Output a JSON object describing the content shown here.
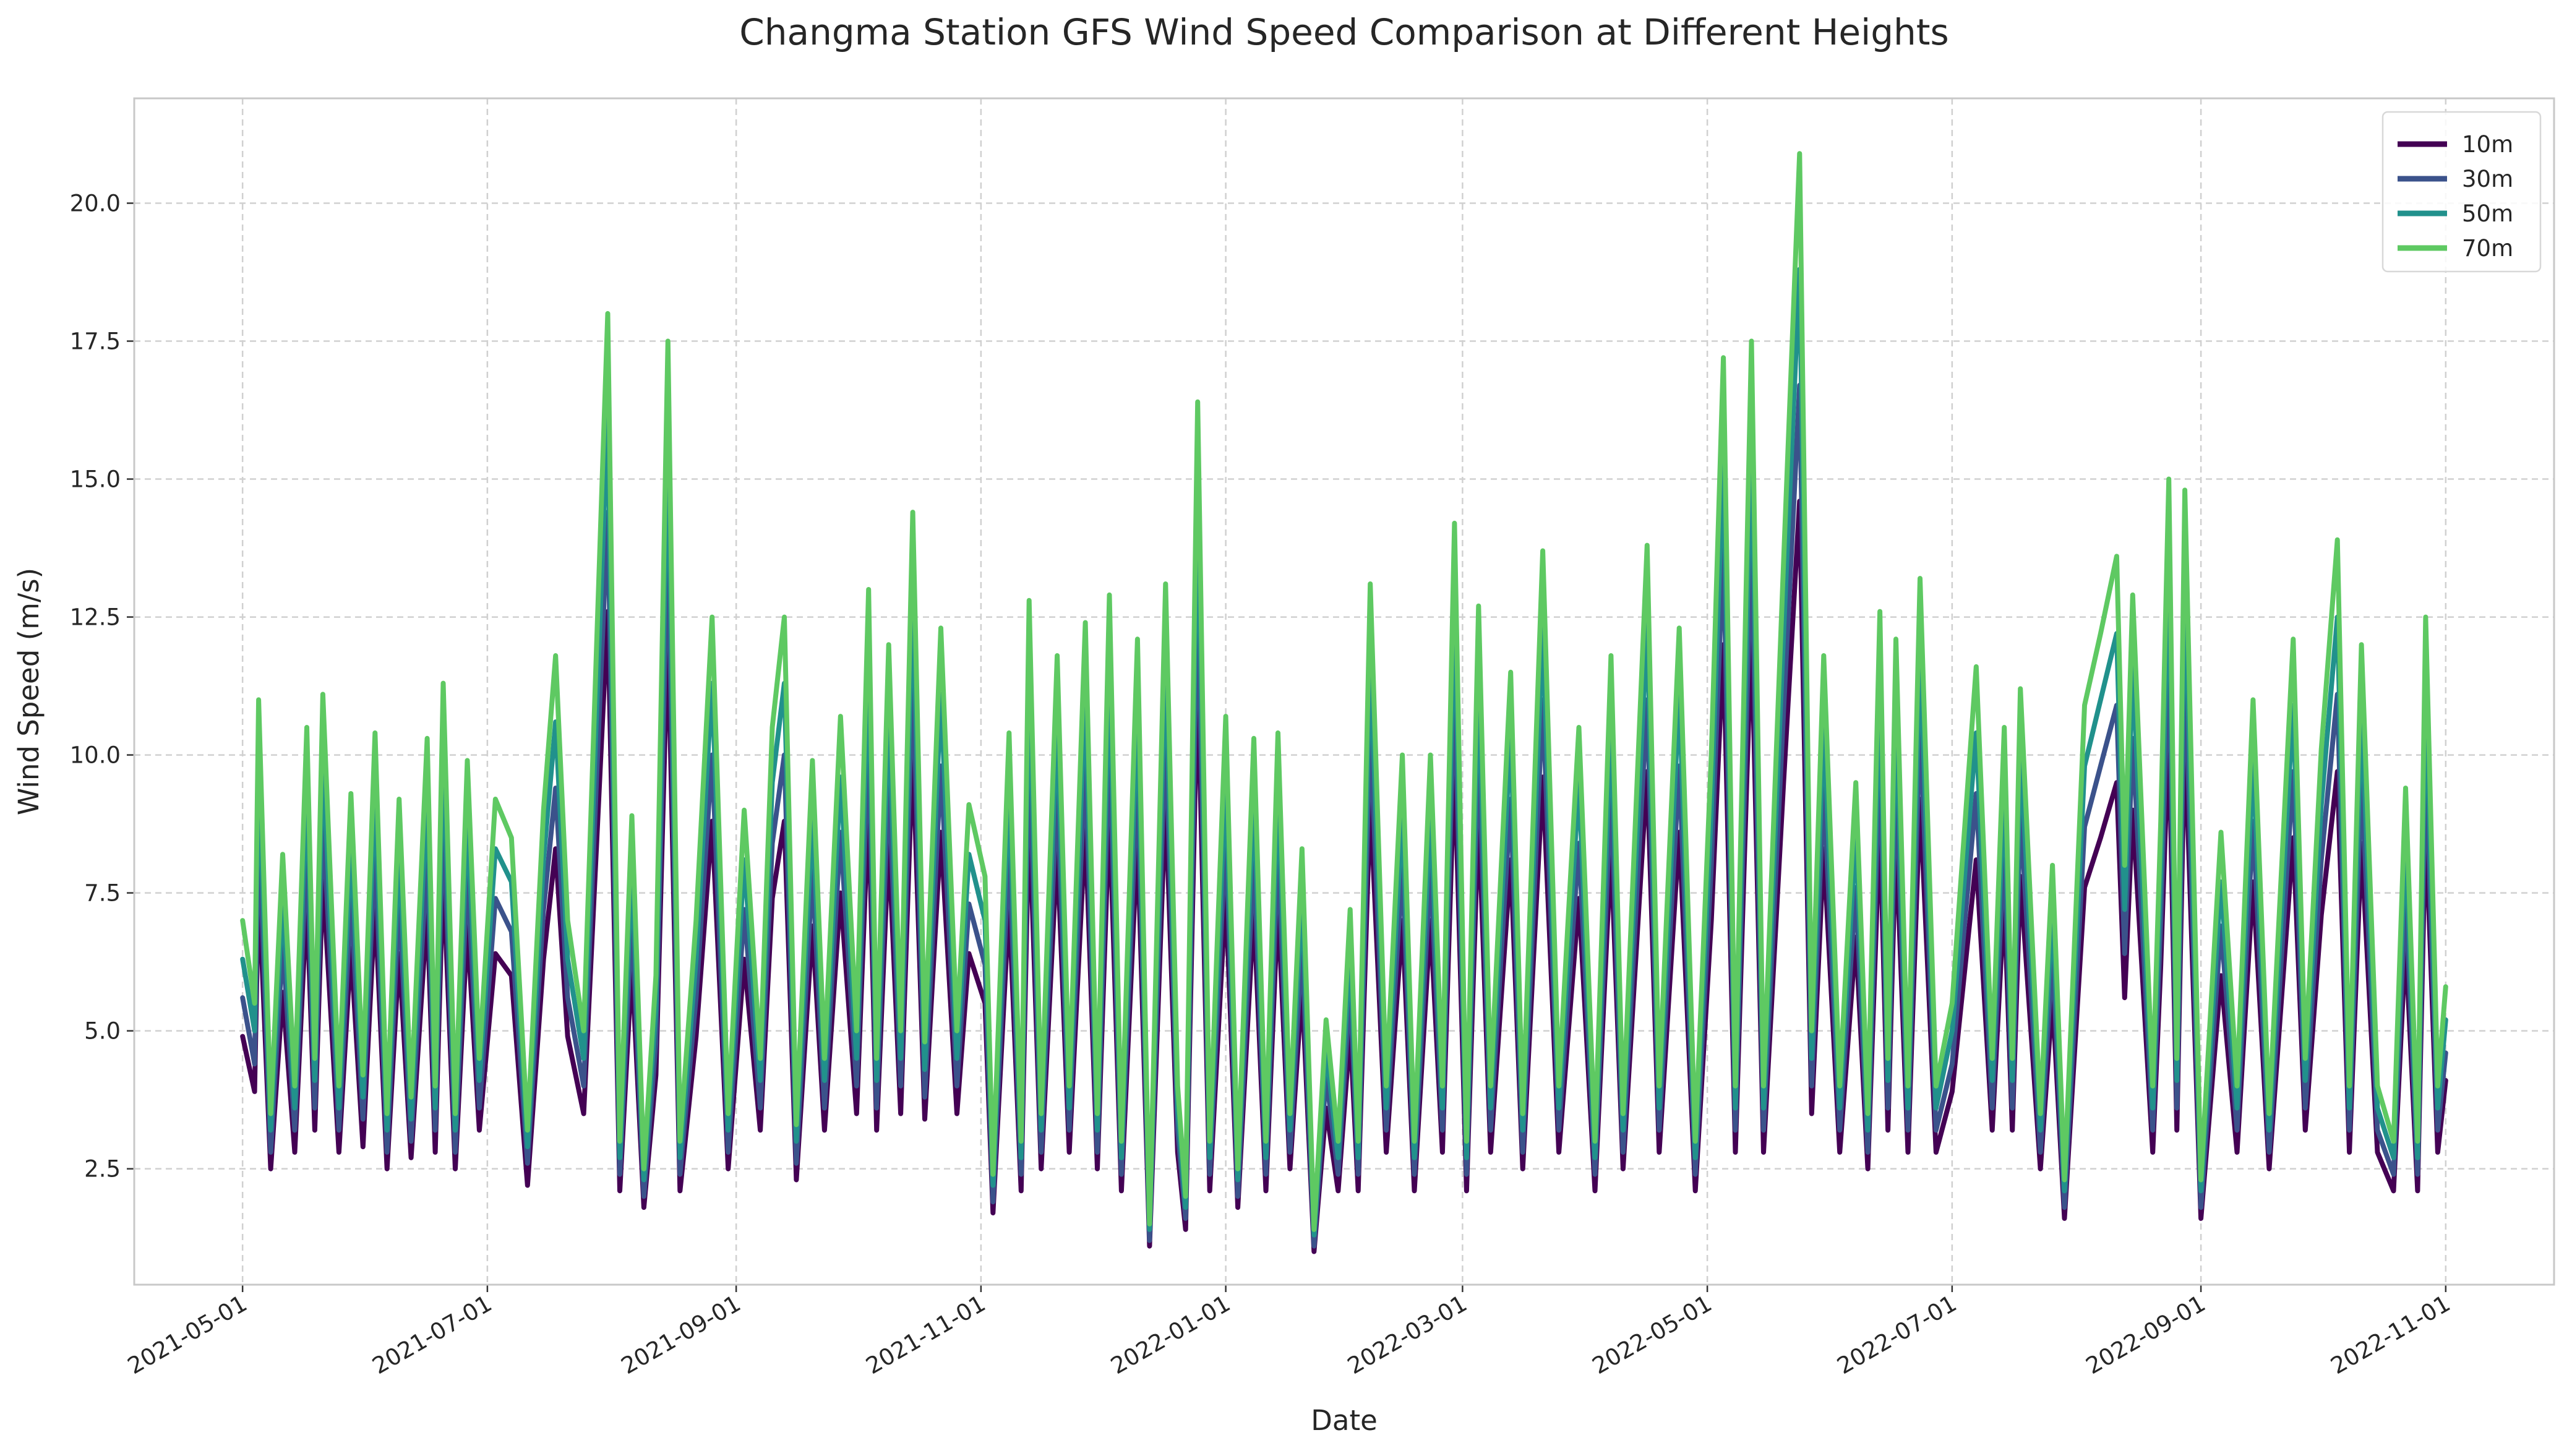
{
  "chart_data": {
    "type": "line",
    "title": "Changma Station GFS Wind Speed Comparison at Different Heights",
    "xlabel": "Date",
    "ylabel": "Wind Speed (m/s)",
    "x": [
      "2021-05-01",
      "2021-05-04",
      "2021-05-05",
      "2021-05-08",
      "2021-05-11",
      "2021-05-14",
      "2021-05-17",
      "2021-05-19",
      "2021-05-21",
      "2021-05-25",
      "2021-05-28",
      "2021-05-31",
      "2021-06-03",
      "2021-06-06",
      "2021-06-09",
      "2021-06-12",
      "2021-06-16",
      "2021-06-18",
      "2021-06-20",
      "2021-06-23",
      "2021-06-26",
      "2021-06-29",
      "2021-07-03",
      "2021-07-07",
      "2021-07-11",
      "2021-07-15",
      "2021-07-18",
      "2021-07-21",
      "2021-07-25",
      "2021-07-31",
      "2021-08-03",
      "2021-08-06",
      "2021-08-09",
      "2021-08-12",
      "2021-08-15",
      "2021-08-18",
      "2021-08-22",
      "2021-08-26",
      "2021-08-30",
      "2021-09-03",
      "2021-09-07",
      "2021-09-10",
      "2021-09-13",
      "2021-09-16",
      "2021-09-20",
      "2021-09-23",
      "2021-09-27",
      "2021-10-01",
      "2021-10-04",
      "2021-10-06",
      "2021-10-09",
      "2021-10-12",
      "2021-10-15",
      "2021-10-18",
      "2021-10-22",
      "2021-10-26",
      "2021-10-29",
      "2021-11-02",
      "2021-11-04",
      "2021-11-08",
      "2021-11-11",
      "2021-11-13",
      "2021-11-16",
      "2021-11-20",
      "2021-11-23",
      "2021-11-27",
      "2021-11-30",
      "2021-12-03",
      "2021-12-06",
      "2021-12-10",
      "2021-12-13",
      "2021-12-17",
      "2021-12-20",
      "2021-12-22",
      "2021-12-25",
      "2021-12-28",
      "2022-01-01",
      "2022-01-04",
      "2022-01-08",
      "2022-01-11",
      "2022-01-14",
      "2022-01-17",
      "2022-01-20",
      "2022-01-23",
      "2022-01-26",
      "2022-01-29",
      "2022-02-01",
      "2022-02-03",
      "2022-02-06",
      "2022-02-10",
      "2022-02-14",
      "2022-02-17",
      "2022-02-21",
      "2022-02-24",
      "2022-02-27",
      "2022-03-02",
      "2022-03-05",
      "2022-03-08",
      "2022-03-13",
      "2022-03-16",
      "2022-03-21",
      "2022-03-25",
      "2022-03-30",
      "2022-04-03",
      "2022-04-07",
      "2022-04-10",
      "2022-04-16",
      "2022-04-19",
      "2022-04-24",
      "2022-04-28",
      "2022-05-02",
      "2022-05-05",
      "2022-05-08",
      "2022-05-12",
      "2022-05-15",
      "2022-05-20",
      "2022-05-24",
      "2022-05-27",
      "2022-05-30",
      "2022-06-03",
      "2022-06-07",
      "2022-06-10",
      "2022-06-13",
      "2022-06-15",
      "2022-06-17",
      "2022-06-20",
      "2022-06-23",
      "2022-06-27",
      "2022-07-01",
      "2022-07-07",
      "2022-07-11",
      "2022-07-14",
      "2022-07-16",
      "2022-07-18",
      "2022-07-23",
      "2022-07-26",
      "2022-07-29",
      "2022-08-03",
      "2022-08-07",
      "2022-08-11",
      "2022-08-13",
      "2022-08-15",
      "2022-08-20",
      "2022-08-22",
      "2022-08-24",
      "2022-08-26",
      "2022-08-28",
      "2022-09-01",
      "2022-09-06",
      "2022-09-10",
      "2022-09-14",
      "2022-09-18",
      "2022-09-24",
      "2022-09-27",
      "2022-10-01",
      "2022-10-05",
      "2022-10-08",
      "2022-10-11",
      "2022-10-15",
      "2022-10-19",
      "2022-10-22",
      "2022-10-25",
      "2022-10-27",
      "2022-10-30",
      "2022-11-01"
    ],
    "series": [
      {
        "name": "10m",
        "color": "#440154",
        "values": [
          4.9,
          3.9,
          7.7,
          2.5,
          5.7,
          2.8,
          7.4,
          3.2,
          7.8,
          2.8,
          6.5,
          2.9,
          7.3,
          2.5,
          6.4,
          2.7,
          7.2,
          2.8,
          7.9,
          2.5,
          6.9,
          3.2,
          6.4,
          6.0,
          2.2,
          6.3,
          8.3,
          4.9,
          3.5,
          12.6,
          2.1,
          6.2,
          1.8,
          4.2,
          12.3,
          2.1,
          4.9,
          8.8,
          2.5,
          6.3,
          3.2,
          7.4,
          8.8,
          2.3,
          6.9,
          3.2,
          7.5,
          3.5,
          9.1,
          3.2,
          8.4,
          3.5,
          10.1,
          3.4,
          8.6,
          3.5,
          6.4,
          5.5,
          1.7,
          7.3,
          2.1,
          9.0,
          2.5,
          8.3,
          2.8,
          8.7,
          2.5,
          9.0,
          2.1,
          8.5,
          1.1,
          9.2,
          2.8,
          1.4,
          11.5,
          2.1,
          7.5,
          1.8,
          7.2,
          2.1,
          7.3,
          2.5,
          5.8,
          1.0,
          3.6,
          2.1,
          5.0,
          2.1,
          9.2,
          2.8,
          7.0,
          2.1,
          7.0,
          2.8,
          9.9,
          2.1,
          8.9,
          2.8,
          8.1,
          2.5,
          9.6,
          2.8,
          7.4,
          2.1,
          8.3,
          2.5,
          9.7,
          2.8,
          8.6,
          2.1,
          7.0,
          12.0,
          2.8,
          12.3,
          2.8,
          9.5,
          14.6,
          3.5,
          8.3,
          2.8,
          6.7,
          2.5,
          8.8,
          3.2,
          8.5,
          2.8,
          9.2,
          2.8,
          3.9,
          8.1,
          3.2,
          7.4,
          3.2,
          7.8,
          2.5,
          5.6,
          1.6,
          7.6,
          8.5,
          9.5,
          5.6,
          9.0,
          2.8,
          6.2,
          10.5,
          3.2,
          10.4,
          1.6,
          6.0,
          2.8,
          7.7,
          2.5,
          8.5,
          3.2,
          7.1,
          9.7,
          2.8,
          8.4,
          2.8,
          2.1,
          6.6,
          2.1,
          8.8,
          2.8,
          4.1
        ]
      },
      {
        "name": "30m",
        "color": "#3b528b",
        "values": [
          5.6,
          4.4,
          8.8,
          2.8,
          6.6,
          3.2,
          8.4,
          3.6,
          8.9,
          3.2,
          7.4,
          3.4,
          8.3,
          2.8,
          7.4,
          3.0,
          8.2,
          3.2,
          9.0,
          2.8,
          7.9,
          3.6,
          7.4,
          6.8,
          2.6,
          7.2,
          9.4,
          5.6,
          4.0,
          14.4,
          2.4,
          7.1,
          2.0,
          4.8,
          14.0,
          2.4,
          5.6,
          10.0,
          2.8,
          7.2,
          3.6,
          8.4,
          10.0,
          2.6,
          7.9,
          3.6,
          8.6,
          4.0,
          10.4,
          3.6,
          9.6,
          4.0,
          11.5,
          3.8,
          9.8,
          4.0,
          7.3,
          6.2,
          1.9,
          8.3,
          2.4,
          10.2,
          2.8,
          9.4,
          3.2,
          9.9,
          2.8,
          10.3,
          2.4,
          9.7,
          1.2,
          10.5,
          3.2,
          1.6,
          13.1,
          2.4,
          8.6,
          2.0,
          8.2,
          2.4,
          8.3,
          2.8,
          6.6,
          1.1,
          4.2,
          2.4,
          5.8,
          2.4,
          10.5,
          3.2,
          8.0,
          2.4,
          8.0,
          3.2,
          11.4,
          2.4,
          10.2,
          3.2,
          9.2,
          2.8,
          11.0,
          3.2,
          8.4,
          2.4,
          9.4,
          2.8,
          11.0,
          3.2,
          9.8,
          2.4,
          8.0,
          13.8,
          3.2,
          14.0,
          3.2,
          10.8,
          16.7,
          4.0,
          9.4,
          3.2,
          7.6,
          2.8,
          10.1,
          3.6,
          9.7,
          3.2,
          10.6,
          3.2,
          4.4,
          9.3,
          3.6,
          8.4,
          3.6,
          9.0,
          2.8,
          6.4,
          1.8,
          8.7,
          9.8,
          10.9,
          6.4,
          10.3,
          3.2,
          7.0,
          12.0,
          3.6,
          11.8,
          1.8,
          6.9,
          3.2,
          8.8,
          2.8,
          9.7,
          3.6,
          8.1,
          11.1,
          3.2,
          9.6,
          3.2,
          2.4,
          7.5,
          2.4,
          10.0,
          3.2,
          4.6
        ]
      },
      {
        "name": "50m",
        "color": "#21918c",
        "values": [
          6.3,
          5.0,
          9.9,
          3.2,
          7.4,
          3.6,
          9.5,
          4.1,
          10.0,
          3.6,
          8.4,
          3.8,
          9.4,
          3.2,
          8.3,
          3.4,
          9.3,
          3.6,
          10.2,
          3.2,
          8.9,
          4.1,
          8.3,
          7.7,
          2.9,
          8.1,
          10.6,
          6.3,
          4.5,
          16.2,
          2.7,
          8.0,
          2.3,
          5.4,
          15.8,
          2.7,
          6.3,
          11.3,
          3.2,
          8.1,
          4.1,
          9.5,
          11.3,
          3.0,
          8.9,
          4.1,
          9.6,
          4.5,
          11.7,
          4.1,
          10.8,
          4.5,
          13.0,
          4.3,
          11.1,
          4.5,
          8.2,
          7.0,
          2.2,
          9.4,
          2.7,
          11.5,
          3.2,
          10.6,
          3.6,
          11.2,
          3.2,
          11.6,
          2.7,
          10.9,
          1.4,
          11.8,
          3.6,
          1.8,
          14.8,
          2.7,
          9.6,
          2.3,
          9.3,
          2.7,
          9.4,
          3.2,
          7.5,
          1.3,
          4.7,
          2.7,
          6.5,
          2.7,
          11.8,
          3.6,
          9.0,
          2.7,
          9.0,
          3.6,
          12.8,
          2.7,
          11.4,
          3.6,
          10.4,
          3.2,
          12.3,
          3.6,
          9.5,
          2.7,
          10.6,
          3.2,
          12.4,
          3.6,
          11.1,
          2.7,
          9.0,
          15.5,
          3.6,
          15.8,
          3.6,
          12.2,
          18.8,
          4.5,
          10.6,
          3.6,
          8.6,
          3.2,
          11.3,
          4.1,
          10.9,
          3.6,
          11.9,
          3.6,
          5.0,
          10.4,
          4.1,
          9.5,
          4.1,
          10.1,
          3.2,
          7.2,
          2.1,
          9.8,
          11.0,
          12.2,
          7.2,
          11.6,
          3.6,
          7.9,
          13.5,
          4.1,
          13.3,
          2.1,
          7.7,
          3.6,
          9.9,
          3.2,
          10.9,
          4.1,
          9.1,
          12.5,
          3.6,
          10.8,
          3.6,
          2.7,
          8.5,
          2.7,
          11.3,
          3.6,
          5.2
        ]
      },
      {
        "name": "70m",
        "color": "#5ec962",
        "values": [
          7.0,
          5.5,
          11.0,
          3.5,
          8.2,
          4.0,
          10.5,
          4.5,
          11.1,
          4.0,
          9.3,
          4.2,
          10.4,
          3.5,
          9.2,
          3.8,
          10.3,
          4.0,
          11.3,
          3.5,
          9.9,
          4.5,
          9.2,
          8.5,
          3.2,
          9.0,
          11.8,
          7.0,
          5.0,
          18.0,
          3.0,
          8.9,
          2.5,
          6.0,
          17.5,
          3.0,
          7.0,
          12.5,
          3.5,
          9.0,
          4.5,
          10.5,
          12.5,
          3.3,
          9.9,
          4.5,
          10.7,
          5.0,
          13.0,
          4.5,
          12.0,
          5.0,
          14.4,
          4.8,
          12.3,
          5.0,
          9.1,
          7.8,
          2.4,
          10.4,
          3.0,
          12.8,
          3.5,
          11.8,
          4.0,
          12.4,
          3.5,
          12.9,
          3.0,
          12.1,
          1.5,
          13.1,
          4.0,
          2.0,
          16.4,
          3.0,
          10.7,
          2.5,
          10.3,
          3.0,
          10.4,
          3.5,
          8.3,
          1.4,
          5.2,
          3.0,
          7.2,
          3.0,
          13.1,
          4.0,
          10.0,
          3.0,
          10.0,
          4.0,
          14.2,
          3.0,
          12.7,
          4.0,
          11.5,
          3.5,
          13.7,
          4.0,
          10.5,
          3.0,
          11.8,
          3.5,
          13.8,
          4.0,
          12.3,
          3.0,
          10.0,
          17.2,
          4.0,
          17.5,
          4.0,
          13.5,
          20.9,
          5.0,
          11.8,
          4.0,
          9.5,
          3.5,
          12.6,
          4.5,
          12.1,
          4.0,
          13.2,
          4.0,
          5.5,
          11.6,
          4.5,
          10.5,
          4.5,
          11.2,
          3.5,
          8.0,
          2.3,
          10.9,
          12.2,
          13.6,
          8.0,
          12.9,
          4.0,
          8.8,
          15.0,
          4.5,
          14.8,
          2.3,
          8.6,
          4.0,
          11.0,
          3.5,
          12.1,
          4.5,
          10.1,
          13.9,
          4.0,
          12.0,
          4.0,
          3.0,
          9.4,
          3.0,
          12.5,
          4.0,
          5.8
        ]
      }
    ],
    "xlim": [
      "2021-04-04",
      "2022-11-28"
    ],
    "xticks": [
      "2021-05-01",
      "2021-07-01",
      "2021-09-01",
      "2021-11-01",
      "2022-01-01",
      "2022-03-01",
      "2022-05-01",
      "2022-07-01",
      "2022-09-01",
      "2022-11-01"
    ],
    "ylim": [
      0.4,
      21.9
    ],
    "yticks": [
      2.5,
      {
        "value": 5,
        "label": "5.0"
      },
      7.5,
      {
        "value": 10,
        "label": "10.0"
      },
      12.5,
      {
        "value": 15,
        "label": "15.0"
      },
      17.5,
      {
        "value": 20,
        "label": "20.0"
      }
    ],
    "grid": true,
    "legend": "upper right"
  }
}
